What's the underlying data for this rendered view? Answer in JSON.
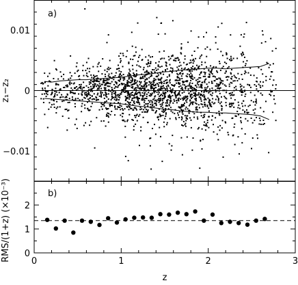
{
  "chart_data": [
    {
      "type": "scatter",
      "panel_label": "a)",
      "xlabel": "",
      "ylabel": "z₁−z₂",
      "xlim": [
        0,
        3
      ],
      "ylim": [
        -0.015,
        0.015
      ],
      "xticks": [
        0,
        1,
        2,
        3
      ],
      "yticks": [
        -0.01,
        0,
        0.01
      ],
      "ytick_labels": [
        "−0.01",
        "0",
        "0.01"
      ],
      "zero_line": true,
      "scatter_note": "approximately 2000 scattered points centered on 0, density peaking near z=1.5; marker fill #000000",
      "series": [
        {
          "x": [
            0.12,
            0.2,
            0.3,
            0.4,
            0.5,
            0.6,
            0.7,
            0.8,
            0.9,
            1.0,
            1.1,
            1.2,
            1.3,
            1.4,
            1.5,
            1.6,
            1.7,
            1.8,
            1.9,
            2.0,
            2.1,
            2.2,
            2.3,
            2.4,
            2.5,
            2.6,
            2.7
          ],
          "y": [
            0.0015,
            0.0014,
            0.0016,
            0.0017,
            0.0018,
            0.0018,
            0.0019,
            0.002,
            0.0021,
            0.0022,
            0.0024,
            0.0026,
            0.0027,
            0.0029,
            0.0031,
            0.0032,
            0.0034,
            0.0035,
            0.0036,
            0.0037,
            0.0037,
            0.0036,
            0.0037,
            0.0038,
            0.0039,
            0.004,
            0.0045
          ]
        },
        {
          "x": [
            0.12,
            0.2,
            0.3,
            0.4,
            0.5,
            0.6,
            0.7,
            0.8,
            0.9,
            1.0,
            1.1,
            1.2,
            1.3,
            1.4,
            1.5,
            1.6,
            1.7,
            1.8,
            1.9,
            2.0,
            2.1,
            2.2,
            2.3,
            2.4,
            2.5,
            2.6,
            2.7
          ],
          "y": [
            -0.0013,
            -0.0014,
            -0.0015,
            -0.0016,
            -0.0017,
            -0.0018,
            -0.0019,
            -0.002,
            -0.0021,
            -0.0022,
            -0.0024,
            -0.0026,
            -0.0027,
            -0.0029,
            -0.0031,
            -0.0032,
            -0.0034,
            -0.0035,
            -0.0036,
            -0.0036,
            -0.0037,
            -0.0037,
            -0.0038,
            -0.0039,
            -0.004,
            -0.0042,
            -0.0048
          ]
        }
      ]
    },
    {
      "type": "scatter",
      "panel_label": "b)",
      "xlabel": "z",
      "ylabel": "RMS/(1+z) (×10⁻³)",
      "xlim": [
        0,
        3
      ],
      "ylim": [
        0,
        3
      ],
      "xticks": [
        0,
        1,
        2,
        3
      ],
      "yticks": [
        0,
        1,
        2,
        3
      ],
      "reference_line": {
        "y": 1.35,
        "style": "dashed"
      },
      "series": [
        {
          "x": [
            0.15,
            0.25,
            0.35,
            0.45,
            0.55,
            0.65,
            0.75,
            0.85,
            0.95,
            1.05,
            1.15,
            1.25,
            1.35,
            1.45,
            1.55,
            1.65,
            1.75,
            1.85,
            1.95,
            2.05,
            2.15,
            2.25,
            2.35,
            2.45,
            2.55,
            2.65
          ],
          "y": [
            1.38,
            1.02,
            1.35,
            0.85,
            1.35,
            1.3,
            1.17,
            1.45,
            1.27,
            1.4,
            1.47,
            1.48,
            1.47,
            1.62,
            1.6,
            1.68,
            1.62,
            1.73,
            1.35,
            1.6,
            1.25,
            1.3,
            1.25,
            1.18,
            1.35,
            1.42
          ]
        }
      ]
    }
  ]
}
